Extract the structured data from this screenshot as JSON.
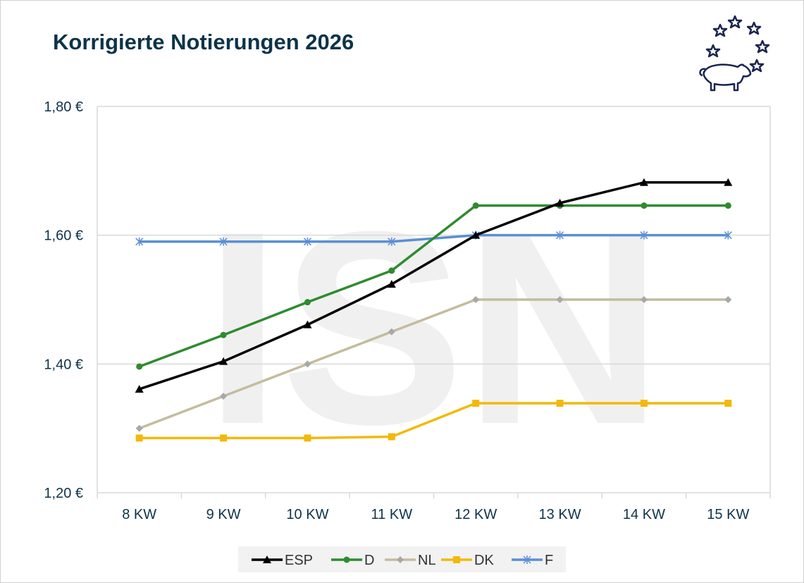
{
  "title": "Korrigierte Notierungen 2026",
  "watermark": "ISN",
  "chart_data": {
    "type": "line",
    "title": "Korrigierte Notierungen 2026",
    "xlabel": "",
    "ylabel": "",
    "categories": [
      "8 KW",
      "9 KW",
      "10 KW",
      "11 KW",
      "12 KW",
      "13 KW",
      "14 KW",
      "15 KW"
    ],
    "ylim": [
      1.2,
      1.8
    ],
    "yticks": [
      1.2,
      1.4,
      1.6,
      1.8
    ],
    "ytick_labels": [
      "1,20 €",
      "1,40 €",
      "1,60 €",
      "1,80 €"
    ],
    "grid": true,
    "legend": "bottom",
    "series": [
      {
        "name": "ESP",
        "color": "#000000",
        "marker": "triangle",
        "values": [
          1.361,
          1.404,
          1.461,
          1.524,
          1.6,
          1.65,
          1.682,
          1.682
        ]
      },
      {
        "name": "D",
        "color": "#2e8b2e",
        "marker": "circle",
        "values": [
          1.396,
          1.445,
          1.496,
          1.545,
          1.646,
          1.646,
          1.646,
          1.646
        ]
      },
      {
        "name": "NL",
        "color": "#c4bc9c",
        "marker": "diamond",
        "values": [
          1.3,
          1.35,
          1.4,
          1.45,
          1.5,
          1.5,
          1.5,
          1.5
        ]
      },
      {
        "name": "DK",
        "color": "#f2b90c",
        "marker": "square",
        "values": [
          1.285,
          1.285,
          1.285,
          1.287,
          1.339,
          1.339,
          1.339,
          1.339
        ]
      },
      {
        "name": "F",
        "color": "#5b8fd4",
        "marker": "star",
        "values": [
          1.59,
          1.59,
          1.59,
          1.59,
          1.6,
          1.6,
          1.6,
          1.6
        ]
      }
    ]
  }
}
